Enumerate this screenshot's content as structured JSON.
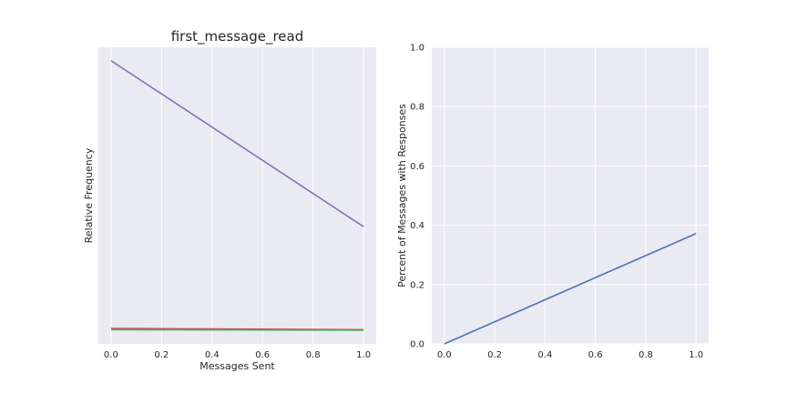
{
  "chart_data": [
    {
      "type": "line",
      "title": "first_message_read",
      "xlabel": "Messages Sent",
      "ylabel": "Relative Frequency",
      "xlim": [
        -0.05,
        1.05
      ],
      "ylim": [
        0,
        1
      ],
      "x_ticks": [
        0.0,
        0.2,
        0.4,
        0.6,
        0.8,
        1.0
      ],
      "x_tick_labels": [
        "0.0",
        "0.2",
        "0.4",
        "0.6",
        "0.8",
        "1.0"
      ],
      "y_ticks_visible": false,
      "grid": true,
      "series": [
        {
          "x": [
            0,
            1
          ],
          "values": [
            0.955,
            0.395
          ],
          "color": "#8172b2"
        },
        {
          "x": [
            0,
            1
          ],
          "values": [
            0.052,
            0.048
          ],
          "color": "#c44e52"
        },
        {
          "x": [
            0,
            1
          ],
          "values": [
            0.048,
            0.046
          ],
          "color": "#55a868"
        }
      ]
    },
    {
      "type": "line",
      "title": "",
      "xlabel": "",
      "ylabel": "Percent of Messages with Responses",
      "xlim": [
        -0.05,
        1.05
      ],
      "ylim": [
        0,
        1
      ],
      "x_ticks": [
        0.0,
        0.2,
        0.4,
        0.6,
        0.8,
        1.0
      ],
      "x_tick_labels": [
        "0.0",
        "0.2",
        "0.4",
        "0.6",
        "0.8",
        "1.0"
      ],
      "y_ticks": [
        0.0,
        0.2,
        0.4,
        0.6,
        0.8,
        1.0
      ],
      "y_tick_labels": [
        "0.0",
        "0.2",
        "0.4",
        "0.6",
        "0.8",
        "1.0"
      ],
      "grid": true,
      "series": [
        {
          "x": [
            0,
            1
          ],
          "values": [
            0.0,
            0.372
          ],
          "color": "#4c72b0"
        }
      ]
    }
  ],
  "colors": {
    "plot_background": "#eaeaf2",
    "grid": "#ffffff"
  }
}
